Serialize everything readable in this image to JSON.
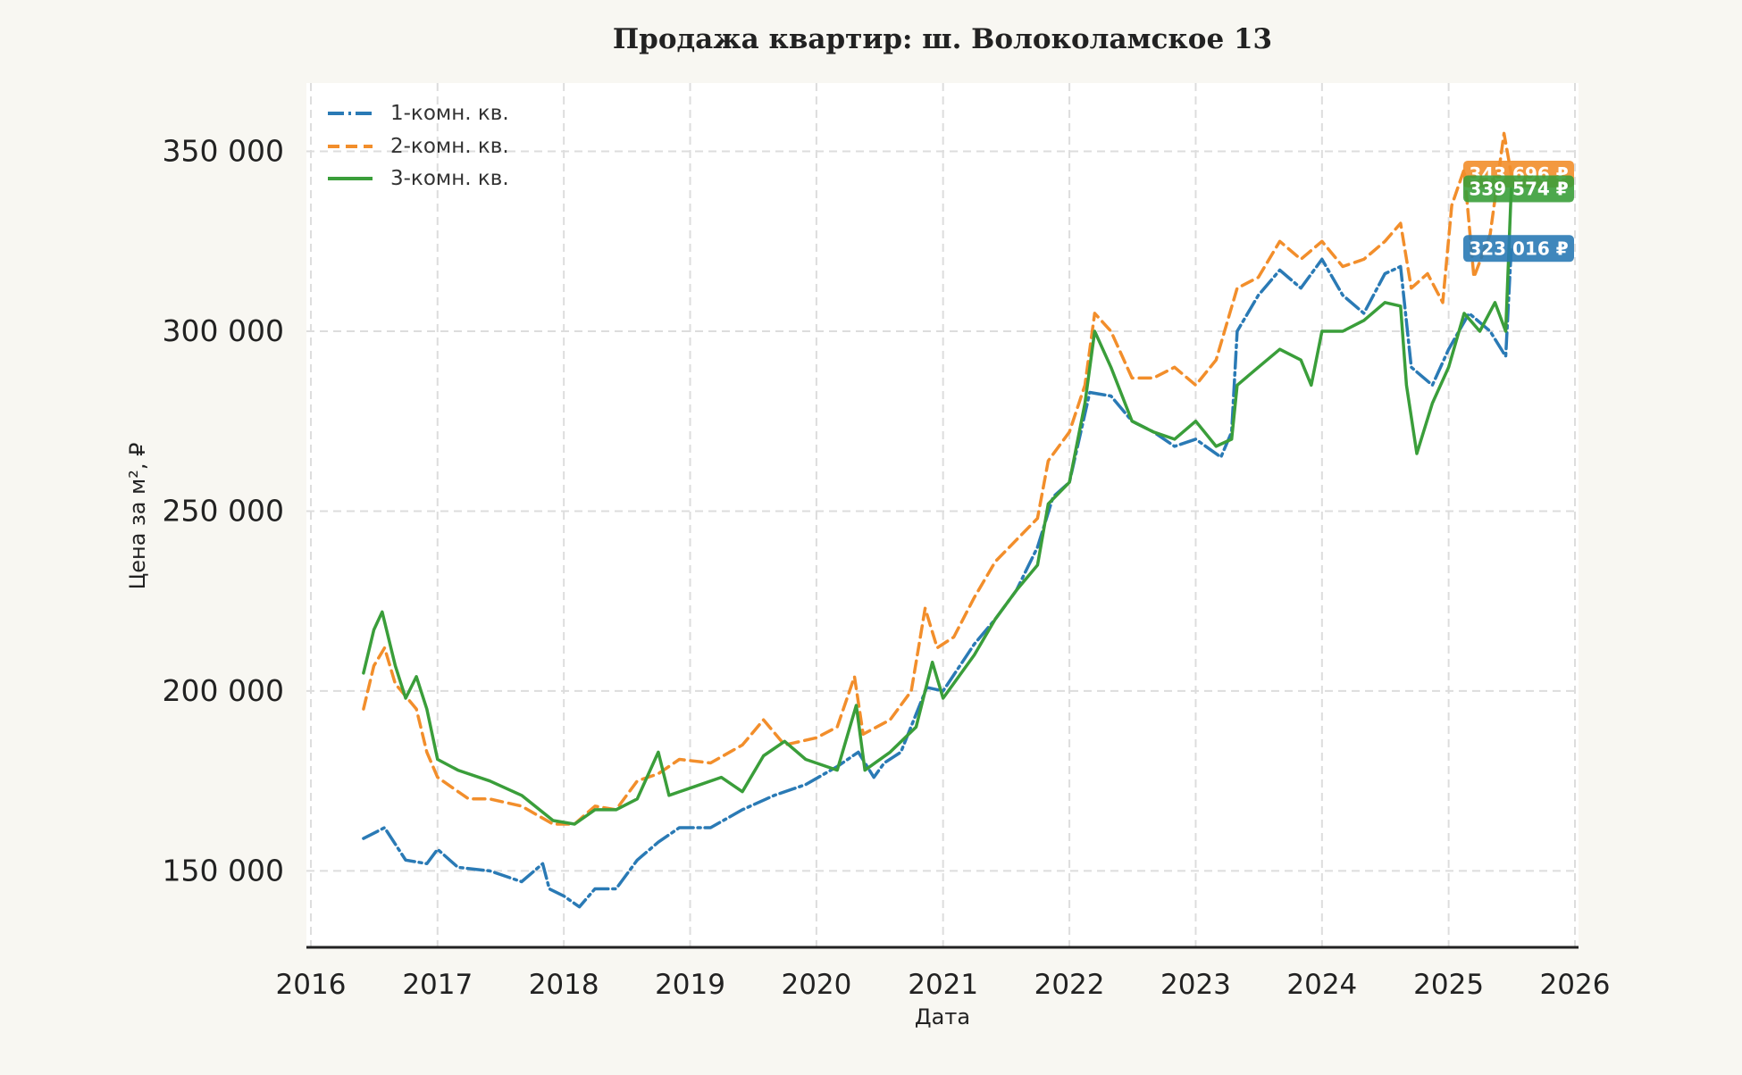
{
  "chart_data": {
    "type": "line",
    "title": "Продажа квартир: ш. Волоколамское 13",
    "xlabel": "Дата",
    "ylabel": "Цена за м², ₽",
    "x_ticks": [
      "2016",
      "2017",
      "2018",
      "2019",
      "2020",
      "2021",
      "2022",
      "2023",
      "2024",
      "2025",
      "2026"
    ],
    "y_ticks": [
      "150 000",
      "200 000",
      "250 000",
      "300 000",
      "350 000"
    ],
    "xlim": [
      "2016-01-01",
      "2026-01-01"
    ],
    "ylim": [
      129000,
      369000
    ],
    "grid": true,
    "legend_position": "top-left",
    "series": [
      {
        "name": "1-комн. кв.",
        "color": "#2a7ab5",
        "dash": "dashdot",
        "end_label": "323 016 ₽",
        "points": [
          [
            "2016-06-01",
            159000
          ],
          [
            "2016-08-01",
            162000
          ],
          [
            "2016-10-01",
            153000
          ],
          [
            "2016-12-01",
            152000
          ],
          [
            "2017-01-01",
            156000
          ],
          [
            "2017-03-01",
            151000
          ],
          [
            "2017-06-01",
            150000
          ],
          [
            "2017-09-01",
            147000
          ],
          [
            "2017-11-01",
            152000
          ],
          [
            "2017-11-20",
            145000
          ],
          [
            "2018-01-01",
            143000
          ],
          [
            "2018-02-15",
            140000
          ],
          [
            "2018-04-01",
            145000
          ],
          [
            "2018-06-01",
            145000
          ],
          [
            "2018-08-01",
            153000
          ],
          [
            "2018-10-01",
            158000
          ],
          [
            "2018-12-01",
            162000
          ],
          [
            "2019-03-01",
            162000
          ],
          [
            "2019-06-01",
            167000
          ],
          [
            "2019-09-01",
            171000
          ],
          [
            "2019-12-01",
            174000
          ],
          [
            "2020-03-01",
            179000
          ],
          [
            "2020-05-01",
            183000
          ],
          [
            "2020-06-15",
            176000
          ],
          [
            "2020-07-15",
            180000
          ],
          [
            "2020-09-01",
            183000
          ],
          [
            "2020-11-15",
            201000
          ],
          [
            "2021-01-01",
            200000
          ],
          [
            "2021-04-01",
            213000
          ],
          [
            "2021-06-01",
            220000
          ],
          [
            "2021-08-01",
            228000
          ],
          [
            "2021-10-01",
            240000
          ],
          [
            "2021-11-15",
            254000
          ],
          [
            "2022-01-01",
            258000
          ],
          [
            "2022-03-01",
            283000
          ],
          [
            "2022-05-01",
            282000
          ],
          [
            "2022-07-01",
            275000
          ],
          [
            "2022-09-01",
            272000
          ],
          [
            "2022-11-01",
            268000
          ],
          [
            "2023-01-01",
            270000
          ],
          [
            "2023-03-15",
            265000
          ],
          [
            "2023-04-15",
            272000
          ],
          [
            "2023-05-01",
            300000
          ],
          [
            "2023-07-01",
            310000
          ],
          [
            "2023-09-01",
            317000
          ],
          [
            "2023-11-01",
            312000
          ],
          [
            "2024-01-01",
            320000
          ],
          [
            "2024-03-01",
            310000
          ],
          [
            "2024-05-01",
            305000
          ],
          [
            "2024-07-01",
            316000
          ],
          [
            "2024-08-15",
            318000
          ],
          [
            "2024-09-15",
            290000
          ],
          [
            "2024-11-15",
            285000
          ],
          [
            "2025-01-01",
            295000
          ],
          [
            "2025-03-01",
            305000
          ],
          [
            "2025-05-01",
            300000
          ],
          [
            "2025-06-15",
            293000
          ],
          [
            "2025-07-01",
            323016
          ]
        ]
      },
      {
        "name": "2-комн. кв.",
        "color": "#f28e2b",
        "dash": "dashed",
        "end_label": "343 696 ₽",
        "points": [
          [
            "2016-06-01",
            195000
          ],
          [
            "2016-07-01",
            207000
          ],
          [
            "2016-08-01",
            212000
          ],
          [
            "2016-09-01",
            202000
          ],
          [
            "2016-11-01",
            195000
          ],
          [
            "2016-12-01",
            183000
          ],
          [
            "2017-01-01",
            176000
          ],
          [
            "2017-04-01",
            170000
          ],
          [
            "2017-06-01",
            170000
          ],
          [
            "2017-09-01",
            168000
          ],
          [
            "2017-12-01",
            163000
          ],
          [
            "2018-02-01",
            163000
          ],
          [
            "2018-04-01",
            168000
          ],
          [
            "2018-06-01",
            167000
          ],
          [
            "2018-08-01",
            175000
          ],
          [
            "2018-10-01",
            177000
          ],
          [
            "2018-12-01",
            181000
          ],
          [
            "2019-03-01",
            180000
          ],
          [
            "2019-06-01",
            185000
          ],
          [
            "2019-08-01",
            192000
          ],
          [
            "2019-10-01",
            185000
          ],
          [
            "2020-01-01",
            187000
          ],
          [
            "2020-03-01",
            190000
          ],
          [
            "2020-04-20",
            204000
          ],
          [
            "2020-05-15",
            188000
          ],
          [
            "2020-08-01",
            192000
          ],
          [
            "2020-10-01",
            200000
          ],
          [
            "2020-11-10",
            223000
          ],
          [
            "2020-12-15",
            212000
          ],
          [
            "2021-02-01",
            215000
          ],
          [
            "2021-04-01",
            226000
          ],
          [
            "2021-06-01",
            236000
          ],
          [
            "2021-08-01",
            242000
          ],
          [
            "2021-10-01",
            248000
          ],
          [
            "2021-11-01",
            264000
          ],
          [
            "2022-01-01",
            272000
          ],
          [
            "2022-02-15",
            285000
          ],
          [
            "2022-03-15",
            305000
          ],
          [
            "2022-05-01",
            300000
          ],
          [
            "2022-07-01",
            287000
          ],
          [
            "2022-09-01",
            287000
          ],
          [
            "2022-11-01",
            290000
          ],
          [
            "2023-01-01",
            285000
          ],
          [
            "2023-03-01",
            292000
          ],
          [
            "2023-05-01",
            312000
          ],
          [
            "2023-07-01",
            315000
          ],
          [
            "2023-09-01",
            325000
          ],
          [
            "2023-11-01",
            320000
          ],
          [
            "2024-01-01",
            325000
          ],
          [
            "2024-03-01",
            318000
          ],
          [
            "2024-05-01",
            320000
          ],
          [
            "2024-07-01",
            325000
          ],
          [
            "2024-08-15",
            330000
          ],
          [
            "2024-09-15",
            312000
          ],
          [
            "2024-11-01",
            316000
          ],
          [
            "2024-12-15",
            308000
          ],
          [
            "2025-01-10",
            335000
          ],
          [
            "2025-02-15",
            345000
          ],
          [
            "2025-03-15",
            315000
          ],
          [
            "2025-05-01",
            327000
          ],
          [
            "2025-06-10",
            355000
          ],
          [
            "2025-07-01",
            343696
          ]
        ]
      },
      {
        "name": "3-комн. кв.",
        "color": "#3a9e3a",
        "dash": "solid",
        "end_label": "339 574 ₽",
        "points": [
          [
            "2016-06-01",
            205000
          ],
          [
            "2016-07-01",
            217000
          ],
          [
            "2016-07-25",
            222000
          ],
          [
            "2016-09-01",
            207000
          ],
          [
            "2016-10-01",
            198000
          ],
          [
            "2016-11-01",
            204000
          ],
          [
            "2016-12-01",
            195000
          ],
          [
            "2017-01-01",
            181000
          ],
          [
            "2017-03-01",
            178000
          ],
          [
            "2017-06-01",
            175000
          ],
          [
            "2017-09-01",
            171000
          ],
          [
            "2017-12-01",
            164000
          ],
          [
            "2018-02-01",
            163000
          ],
          [
            "2018-04-01",
            167000
          ],
          [
            "2018-06-01",
            167000
          ],
          [
            "2018-08-01",
            170000
          ],
          [
            "2018-10-01",
            183000
          ],
          [
            "2018-11-01",
            171000
          ],
          [
            "2019-01-01",
            173000
          ],
          [
            "2019-04-01",
            176000
          ],
          [
            "2019-06-01",
            172000
          ],
          [
            "2019-08-01",
            182000
          ],
          [
            "2019-10-01",
            186000
          ],
          [
            "2019-12-01",
            181000
          ],
          [
            "2020-03-01",
            178000
          ],
          [
            "2020-04-25",
            196000
          ],
          [
            "2020-05-20",
            178000
          ],
          [
            "2020-08-01",
            183000
          ],
          [
            "2020-10-15",
            190000
          ],
          [
            "2020-12-01",
            208000
          ],
          [
            "2021-01-01",
            198000
          ],
          [
            "2021-04-01",
            210000
          ],
          [
            "2021-06-01",
            220000
          ],
          [
            "2021-08-01",
            228000
          ],
          [
            "2021-10-01",
            235000
          ],
          [
            "2021-11-01",
            252000
          ],
          [
            "2022-01-01",
            258000
          ],
          [
            "2022-02-15",
            280000
          ],
          [
            "2022-03-15",
            300000
          ],
          [
            "2022-05-01",
            290000
          ],
          [
            "2022-07-01",
            275000
          ],
          [
            "2022-09-01",
            272000
          ],
          [
            "2022-11-01",
            270000
          ],
          [
            "2023-01-01",
            275000
          ],
          [
            "2023-03-01",
            268000
          ],
          [
            "2023-04-15",
            270000
          ],
          [
            "2023-05-01",
            285000
          ],
          [
            "2023-07-01",
            290000
          ],
          [
            "2023-09-01",
            295000
          ],
          [
            "2023-11-01",
            292000
          ],
          [
            "2023-12-01",
            285000
          ],
          [
            "2024-01-01",
            300000
          ],
          [
            "2024-03-01",
            300000
          ],
          [
            "2024-05-01",
            303000
          ],
          [
            "2024-07-01",
            308000
          ],
          [
            "2024-08-15",
            307000
          ],
          [
            "2024-09-01",
            285000
          ],
          [
            "2024-10-01",
            266000
          ],
          [
            "2024-11-15",
            280000
          ],
          [
            "2025-01-01",
            290000
          ],
          [
            "2025-02-15",
            305000
          ],
          [
            "2025-04-01",
            300000
          ],
          [
            "2025-05-15",
            308000
          ],
          [
            "2025-06-15",
            300000
          ],
          [
            "2025-07-01",
            339574
          ]
        ]
      }
    ]
  }
}
